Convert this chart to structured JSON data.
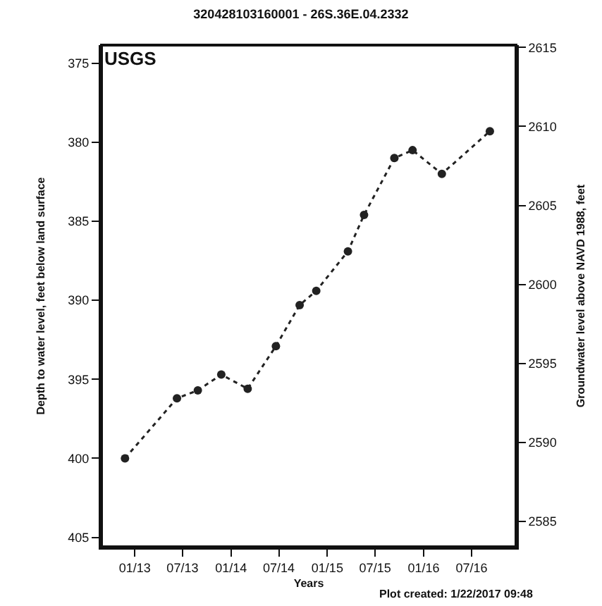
{
  "chart_data": {
    "type": "line",
    "title": "320428103160001 - 26S.36E.04.2332",
    "xlabel": "Years",
    "ylabel": "Depth to water level, feet below land surface",
    "y2label": "Groundwater level above NAVD 1988, feet",
    "annotations": [
      "USGS",
      "Plot created: 1/22/2017 09:48"
    ],
    "x": [
      "2012-11-25",
      "2013-06-10",
      "2013-08-28",
      "2013-11-25",
      "2014-03-05",
      "2014-06-20",
      "2014-09-18",
      "2014-11-20",
      "2015-03-20",
      "2015-05-20",
      "2015-09-12",
      "2015-11-20",
      "2016-03-10",
      "2016-09-08"
    ],
    "series": [
      {
        "color": "#222222",
        "values": [
          400.0,
          396.2,
          395.7,
          394.7,
          395.6,
          392.9,
          390.3,
          389.4,
          386.9,
          384.6,
          381.0,
          380.5,
          382.0,
          379.3
        ]
      }
    ],
    "xlim": [
      "2012-08-28",
      "2016-12-16"
    ],
    "xticks": [
      {
        "value": "2013-01-01",
        "label": "01/13"
      },
      {
        "value": "2013-07-01",
        "label": "07/13"
      },
      {
        "value": "2014-01-01",
        "label": "01/14"
      },
      {
        "value": "2014-07-01",
        "label": "07/14"
      },
      {
        "value": "2015-01-01",
        "label": "01/15"
      },
      {
        "value": "2015-07-01",
        "label": "07/15"
      },
      {
        "value": "2016-01-01",
        "label": "01/16"
      },
      {
        "value": "2016-07-01",
        "label": "07/16"
      }
    ],
    "ylim": [
      405.6,
      373.85
    ],
    "yticks": [
      375,
      380,
      385,
      390,
      395,
      400,
      405
    ],
    "y2lim": [
      2583.4,
      2615.15
    ],
    "y2ticks": [
      2585,
      2590,
      2595,
      2600,
      2605,
      2610,
      2615
    ],
    "marker": "circle",
    "line_style": "dotted",
    "legend": false
  }
}
